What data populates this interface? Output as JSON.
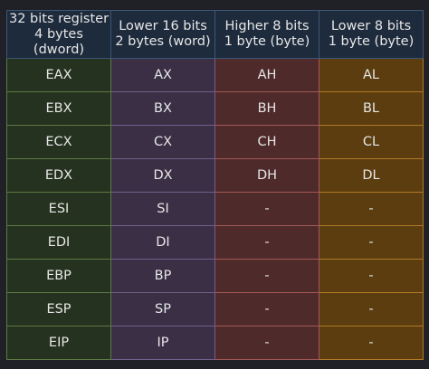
{
  "headers": [
    {
      "line1": "32 bits register",
      "line2": "4 bytes (dword)"
    },
    {
      "line1": "Lower 16 bits",
      "line2": "2 bytes (word)"
    },
    {
      "line1": "Higher 8 bits",
      "line2": "1 byte (byte)"
    },
    {
      "line1": "Lower 8 bits",
      "line2": "1 byte (byte)"
    }
  ],
  "rows": [
    {
      "dword": "EAX",
      "word": "AX",
      "high": "AH",
      "low": "AL"
    },
    {
      "dword": "EBX",
      "word": "BX",
      "high": "BH",
      "low": "BL"
    },
    {
      "dword": "ECX",
      "word": "CX",
      "high": "CH",
      "low": "CL"
    },
    {
      "dword": "EDX",
      "word": "DX",
      "high": "DH",
      "low": "DL"
    },
    {
      "dword": "ESI",
      "word": "SI",
      "high": "-",
      "low": "-"
    },
    {
      "dword": "EDI",
      "word": "DI",
      "high": "-",
      "low": "-"
    },
    {
      "dword": "EBP",
      "word": "BP",
      "high": "-",
      "low": "-"
    },
    {
      "dword": "ESP",
      "word": "SP",
      "high": "-",
      "low": "-"
    },
    {
      "dword": "EIP",
      "word": "IP",
      "high": "-",
      "low": "-"
    }
  ],
  "colors": {
    "background": "#1f2126",
    "header": "#1e2b3d",
    "dword_column": "#25321f",
    "word_column": "#3a2f45",
    "high_byte_column": "#4e2a2a",
    "low_byte_column": "#5b3d10"
  }
}
